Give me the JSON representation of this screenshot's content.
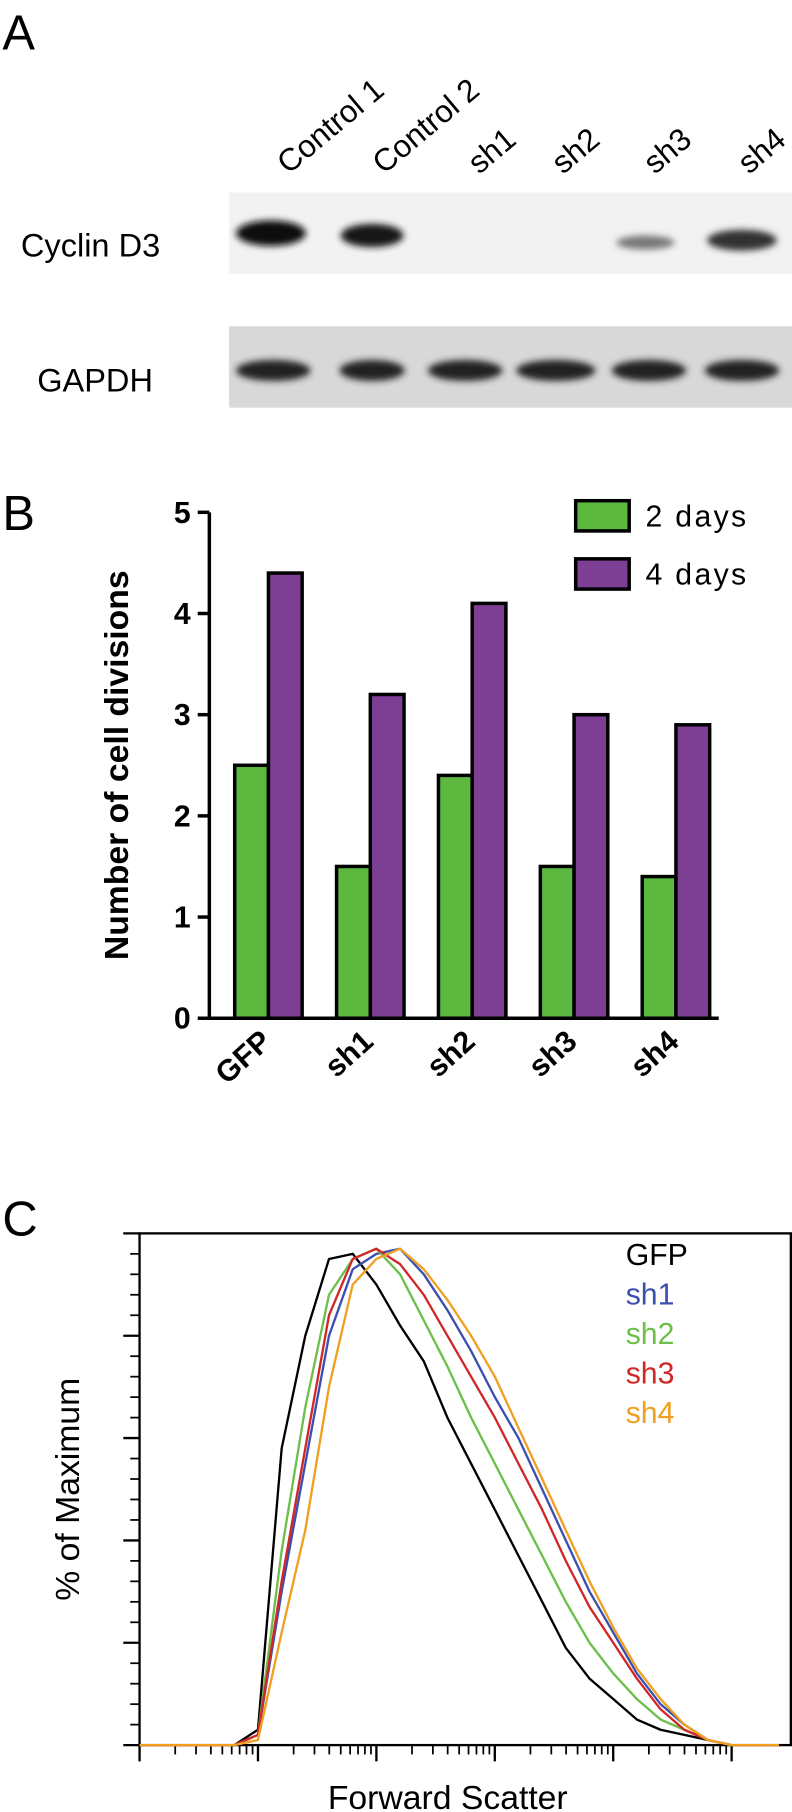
{
  "panel_labels": [
    "A",
    "B",
    "C"
  ],
  "blot": {
    "lanes": [
      "Control 1",
      "Control 2",
      "sh1",
      "sh2",
      "sh3",
      "sh4"
    ],
    "rows": [
      "Cyclin D3",
      "GAPDH"
    ]
  },
  "chart_data": [
    {
      "type": "bar",
      "ylabel": "Number of cell divisions",
      "categories": [
        "GFP",
        "sh1",
        "sh2",
        "sh3",
        "sh4"
      ],
      "series": [
        {
          "name": "2 days",
          "color": "#5cb83e",
          "values": [
            2.5,
            1.5,
            2.4,
            1.5,
            1.4
          ]
        },
        {
          "name": "4 days",
          "color": "#7d3f93",
          "values": [
            4.4,
            3.2,
            4.1,
            3.0,
            2.9
          ]
        }
      ],
      "ylim": [
        0,
        5
      ],
      "yticks": [
        0,
        1,
        2,
        3,
        4,
        5
      ],
      "legend": "upper right"
    },
    {
      "type": "line",
      "xlabel": "Forward Scatter",
      "ylabel": "% of Maximum",
      "x": [
        0,
        0.2,
        0.4,
        0.6,
        0.8,
        1.0,
        1.2,
        1.4,
        1.6,
        1.8,
        2.0,
        2.2,
        2.4,
        2.6,
        2.8,
        3.0,
        3.2,
        3.4,
        3.6,
        3.8,
        4.0,
        4.2,
        4.4,
        4.6,
        4.8,
        5.0,
        5.2,
        5.4
      ],
      "series": [
        {
          "name": "GFP",
          "color": "#000000",
          "values": [
            0,
            0,
            0,
            0,
            0,
            3,
            58,
            80,
            95,
            96,
            90,
            82,
            75,
            64,
            55,
            46,
            37,
            28,
            19,
            13,
            9,
            5,
            3,
            2,
            1,
            0,
            0,
            0
          ]
        },
        {
          "name": "sh1",
          "color": "#3a4fb0",
          "values": [
            0,
            0,
            0,
            0,
            0,
            2,
            30,
            55,
            80,
            93,
            96,
            97,
            92,
            85,
            77,
            68,
            60,
            50,
            40,
            30,
            22,
            14,
            8,
            4,
            1,
            0,
            0,
            0
          ]
        },
        {
          "name": "sh2",
          "color": "#6cbf4a",
          "values": [
            0,
            0,
            0,
            0,
            0,
            2,
            38,
            66,
            88,
            95,
            97,
            92,
            83,
            74,
            64,
            55,
            46,
            37,
            28,
            20,
            14,
            9,
            5,
            3,
            1,
            0,
            0,
            0
          ]
        },
        {
          "name": "sh3",
          "color": "#d02828",
          "values": [
            0,
            0,
            0,
            0,
            0,
            2,
            32,
            58,
            84,
            95,
            97,
            94,
            88,
            80,
            72,
            64,
            55,
            46,
            36,
            27,
            20,
            13,
            7,
            3,
            1,
            0,
            0,
            0
          ]
        },
        {
          "name": "sh4",
          "color": "#f0a020",
          "values": [
            0,
            0,
            0,
            0,
            0,
            1,
            22,
            42,
            70,
            90,
            95,
            97,
            93,
            87,
            80,
            72,
            62,
            52,
            42,
            32,
            23,
            15,
            9,
            4,
            1,
            0,
            0,
            0
          ]
        }
      ],
      "xlim": [
        0,
        5.5
      ],
      "xticks": [
        0,
        1,
        2,
        3,
        4,
        5
      ],
      "ylim": [
        0,
        100
      ],
      "yticks": [
        0,
        20,
        40,
        60,
        80,
        100
      ],
      "tick_labels": false,
      "legend": "upper right"
    }
  ]
}
